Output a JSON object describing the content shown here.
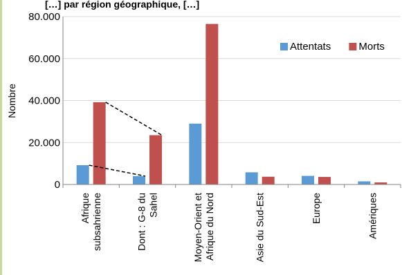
{
  "chart_data": {
    "type": "bar",
    "title": "",
    "title_fragment": "[…] par région géographique, […]",
    "xlabel": "",
    "ylabel": "Nombre",
    "ylim": [
      0,
      80000
    ],
    "yticks": [
      "0",
      "20.000",
      "40.000",
      "60.000",
      "80.000"
    ],
    "ytick_values": [
      0,
      20000,
      40000,
      60000,
      80000
    ],
    "grid": true,
    "legend_position": "top-right",
    "categories": [
      [
        "Afrique",
        "subsahrienne"
      ],
      [
        "Dont : G-8 du",
        "Sahel"
      ],
      [
        "Moyen-Orient et",
        "Afrique du Nord"
      ],
      [
        "Asie du Sud-Est"
      ],
      [
        "Europe"
      ],
      [
        "Amériques"
      ]
    ],
    "series": [
      {
        "name": "Attentats",
        "color": "#5b9bd5",
        "values": [
          9200,
          4000,
          29000,
          5800,
          4100,
          1500
        ]
      },
      {
        "name": "Morts",
        "color": "#c0504d",
        "values": [
          39200,
          23500,
          76500,
          3700,
          3600,
          1000
        ]
      }
    ],
    "annotations": "dashed lines linking Afrique subsahrienne to Dont : G-8 du Sahel for each series"
  }
}
